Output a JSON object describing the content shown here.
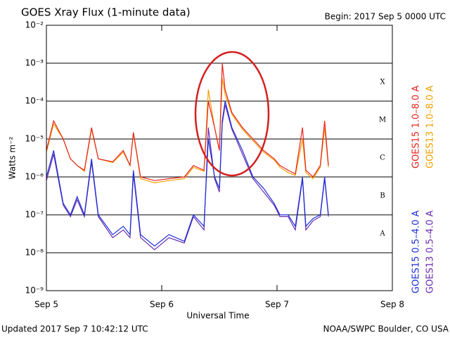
{
  "chart_data": {
    "type": "line",
    "title": "GOES Xray Flux (1-minute data)",
    "subtitle": "Begin:  2017 Sep 5 0000 UTC",
    "x_label": "Universal Time",
    "y_label": "Watts m⁻²",
    "footer_left": "Updated 2017 Sep  7 10:42:12 UTC",
    "footer_right": "NOAA/SWPC Boulder, CO USA",
    "class_labels": [
      "X",
      "M",
      "C",
      "B",
      "A"
    ],
    "log_y": true,
    "grid": true,
    "xlim": [
      0,
      72
    ],
    "xticks": [
      {
        "value": 0,
        "label": "Sep 5"
      },
      {
        "value": 24,
        "label": "Sep 6"
      },
      {
        "value": 48,
        "label": "Sep 7"
      },
      {
        "value": 72,
        "label": "Sep 8"
      }
    ],
    "ylim": [
      1e-09,
      0.01
    ],
    "yticks": [
      {
        "value": 1e-09,
        "label": "10⁻⁹"
      },
      {
        "value": 1e-08,
        "label": "10⁻⁸"
      },
      {
        "value": 1e-07,
        "label": "10⁻⁷"
      },
      {
        "value": 1e-06,
        "label": "10⁻⁶"
      },
      {
        "value": 1e-05,
        "label": "10⁻⁵"
      },
      {
        "value": 0.0001,
        "label": "10⁻⁴"
      },
      {
        "value": 0.001,
        "label": "10⁻³"
      },
      {
        "value": 0.01,
        "label": "10⁻²"
      }
    ],
    "x": [
      0,
      1.5,
      3.5,
      5,
      6.4,
      7.9,
      9.4,
      10.8,
      13.8,
      16,
      17.4,
      18.1,
      19.6,
      22.5,
      25.5,
      28.7,
      30.6,
      32.8,
      33.7,
      35,
      36,
      36.6,
      37.2,
      38.6,
      40.8,
      43,
      45.2,
      47.4,
      48.6,
      50.3,
      51.8,
      53.3,
      54,
      55.5,
      57,
      57.9,
      58.7
    ],
    "series": [
      {
        "name": "GOES15 1.0–8.0 A",
        "color": "#e8231f",
        "values": [
          5e-06,
          3e-05,
          1e-05,
          3e-06,
          2e-06,
          1.5e-06,
          2e-05,
          3e-06,
          2.5e-06,
          5e-06,
          2e-06,
          1.5e-05,
          1e-06,
          8e-07,
          9e-07,
          1e-06,
          2e-06,
          1.5e-06,
          0.0001,
          2e-05,
          5e-06,
          0.001,
          0.0002,
          5e-05,
          2e-05,
          1e-05,
          5e-06,
          3e-06,
          2e-06,
          1.5e-06,
          1.2e-06,
          2e-05,
          1.5e-06,
          1e-06,
          2e-06,
          3e-05,
          2e-06
        ]
      },
      {
        "name": "GOES13 1.0–8.0 A",
        "color": "#f0a000",
        "values": [
          4.5e-06,
          2.5e-05,
          1e-05,
          3e-06,
          2e-06,
          1.4e-06,
          1.8e-05,
          3e-06,
          2.4e-06,
          4.5e-06,
          2e-06,
          1.4e-05,
          9e-07,
          7e-07,
          8e-07,
          9e-07,
          1.8e-06,
          1.4e-06,
          0.0002,
          2e-05,
          5e-06,
          0.0004,
          0.00015,
          4.5e-05,
          1.8e-05,
          9e-06,
          4.5e-06,
          2.8e-06,
          1.8e-06,
          1.3e-06,
          1.1e-06,
          1e-05,
          1.3e-06,
          9e-07,
          1.8e-06,
          2e-05,
          1.8e-06
        ]
      },
      {
        "name": "GOES15 0.5–4.0 A",
        "color": "#1a2fd8",
        "values": [
          1e-06,
          5e-06,
          2e-07,
          1e-07,
          3e-07,
          1e-07,
          3e-06,
          1e-07,
          3e-08,
          5e-08,
          3e-08,
          1.5e-06,
          3e-08,
          1.5e-08,
          3e-08,
          2e-08,
          1e-07,
          5e-08,
          1e-05,
          1e-06,
          5e-07,
          3e-05,
          0.0001,
          2e-05,
          5e-06,
          1e-06,
          5e-07,
          2e-07,
          1e-07,
          1e-07,
          5e-08,
          1e-06,
          5e-08,
          8e-08,
          1e-07,
          1e-06,
          1e-07
        ]
      },
      {
        "name": "GOES13 0.5–4.0 A",
        "color": "#6a2cb0",
        "values": [
          8e-07,
          4e-06,
          1.8e-07,
          9e-08,
          2.5e-07,
          9e-08,
          2.5e-06,
          9e-08,
          2.5e-08,
          4e-08,
          2.5e-08,
          1.2e-06,
          2.5e-08,
          1.2e-08,
          2.5e-08,
          1.8e-08,
          9e-08,
          4e-08,
          2e-05,
          9e-07,
          4e-07,
          2.5e-05,
          8e-05,
          1.8e-05,
          4e-06,
          9e-07,
          4e-07,
          1.8e-07,
          9e-08,
          9e-08,
          4e-08,
          9e-07,
          4e-08,
          7e-08,
          9e-08,
          9e-07,
          9e-08
        ]
      }
    ]
  }
}
